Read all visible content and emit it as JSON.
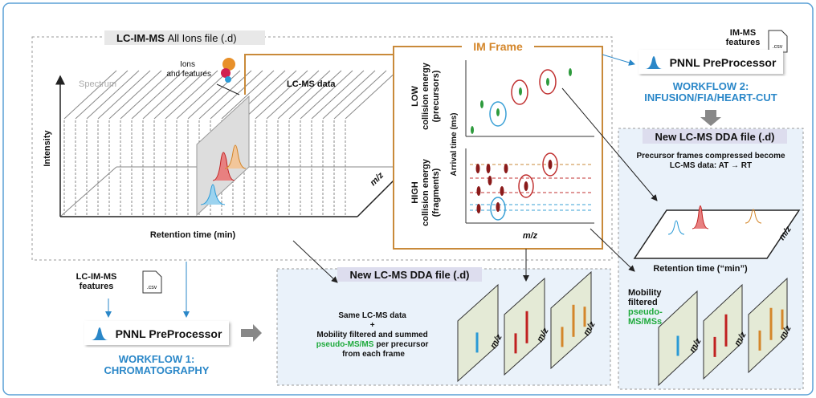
{
  "main_box": {
    "title_bold": "LC-IM-MS",
    "title": "All Ions file (.d)"
  },
  "lcims_plot": {
    "spectrum": "Spectrum",
    "ions_label": [
      "Ions",
      "and features"
    ],
    "lcms_data": "LC-MS data",
    "y_axis": "Intensity",
    "x_axis": "Retention time (min)",
    "z_axis": "m/z"
  },
  "im_frame": {
    "title": "IM Frame",
    "low": [
      "LOW",
      "collision energy",
      "(precursors)"
    ],
    "high": [
      "HIGH",
      "collision energy",
      "(fragments)"
    ],
    "y_axis": "Arrival time (ms)",
    "x_axis": "m/z"
  },
  "workflow2": {
    "features": [
      "IM-MS",
      "features"
    ],
    "file": ".csv",
    "tool": "PNNL PreProcessor",
    "title": [
      "WORKFLOW 2:",
      "INFUSION/FIA/HEART-CUT"
    ]
  },
  "right_panel": {
    "title": "New LC-MS DDA file (.d)",
    "desc": [
      "Precursor frames compressed become",
      "LC-MS data: AT → RT"
    ],
    "x_axis": "Retention time (“min”)",
    "z_axis": "m/z",
    "mobility": [
      "Mobility",
      "filtered"
    ],
    "pseudo": [
      "pseudo-",
      "MS/MSs"
    ],
    "spectra_axis": "m/z"
  },
  "workflow1": {
    "features": [
      "LC-IM-MS",
      "features"
    ],
    "file": ".csv",
    "tool": "PNNL PreProcessor",
    "title": [
      "WORKFLOW 1:",
      "CHROMATOGRAPHY"
    ]
  },
  "bottom_panel": {
    "title": "New LC-MS DDA file (.d)",
    "lines": [
      "Same LC-MS data",
      "+",
      "Mobility filtered and summed"
    ],
    "pseudo": "pseudo-MS/MS",
    "suffix": "per precursor",
    "last": "from each frame",
    "spectra_axis": "m/z"
  }
}
